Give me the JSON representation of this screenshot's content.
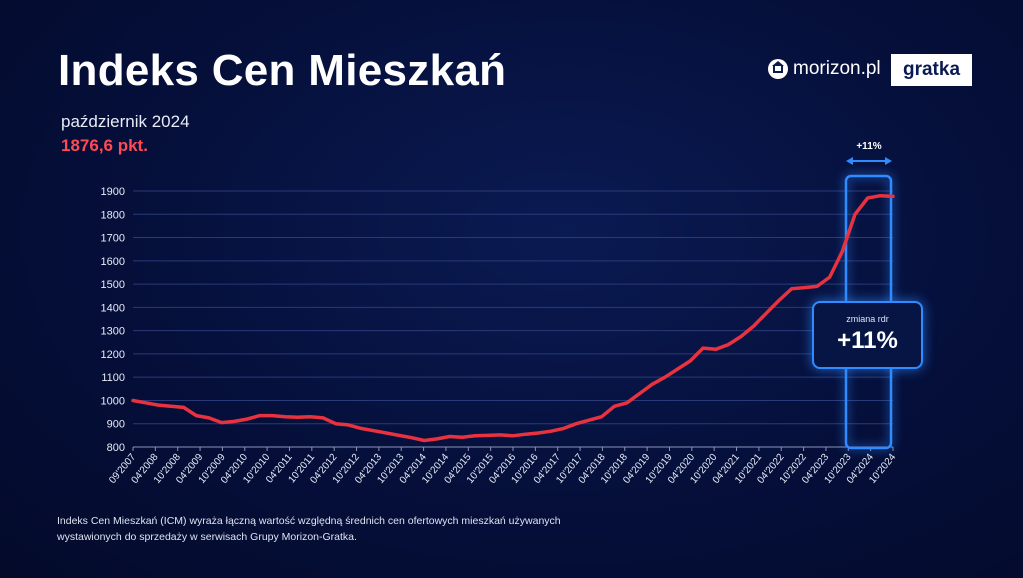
{
  "header": {
    "title": "Indeks Cen Mieszkań",
    "period": "październik 2024",
    "value": "1876,6 pkt."
  },
  "logos": {
    "morizon": "morizon.pl",
    "gratka": "gratka"
  },
  "callout": {
    "label": "zmiana rdr",
    "value": "+11%"
  },
  "highlight_label": "+11%",
  "footnote": "Indeks Cen Mieszkań (ICM) wyraża łączną wartość względną średnich cen ofertowych mieszkań używanych wystawionych do sprzedaży w serwisach Grupy Morizon-Gratka.",
  "colors": {
    "line": "#e8323f",
    "accent": "#2f8bff",
    "value": "#ff4a55"
  },
  "chart_data": {
    "type": "line",
    "title": "",
    "xlabel": "",
    "ylabel": "",
    "ylim": [
      800,
      1900
    ],
    "yticks": [
      "800",
      "900",
      "1000",
      "1100",
      "1200",
      "1300",
      "1400",
      "1500",
      "1600",
      "1700",
      "1800",
      "1900"
    ],
    "xticks": [
      "09'2007",
      "04'2008",
      "10'2008",
      "04'2009",
      "10'2009",
      "04'2010",
      "10'2010",
      "04'2011",
      "10'2011",
      "04'2012",
      "10'2012",
      "04'2013",
      "10'2013",
      "04'2014",
      "10'2014",
      "04'2015",
      "10'2015",
      "04'2016",
      "10'2016",
      "04'2017",
      "10'2017",
      "04'2018",
      "10'2018",
      "04'2019",
      "10'2019",
      "04'2020",
      "10'2020",
      "04'2021",
      "10'2021",
      "04'2022",
      "10'2022",
      "04'2023",
      "10'2023",
      "04'2024",
      "10'2024"
    ],
    "grid": true,
    "series": [
      {
        "values": [
          1000,
          990,
          980,
          975,
          970,
          935,
          925,
          905,
          910,
          920,
          935,
          935,
          930,
          928,
          930,
          925,
          900,
          895,
          880,
          870,
          860,
          850,
          840,
          828,
          835,
          845,
          842,
          848,
          850,
          852,
          848,
          855,
          860,
          868,
          880,
          900,
          915,
          930,
          975,
          990,
          1030,
          1070,
          1100,
          1135,
          1170,
          1225,
          1220,
          1240,
          1275,
          1320,
          1375,
          1430,
          1480,
          1485,
          1490,
          1530,
          1640,
          1800,
          1870,
          1880,
          1876.6
        ]
      }
    ]
  }
}
